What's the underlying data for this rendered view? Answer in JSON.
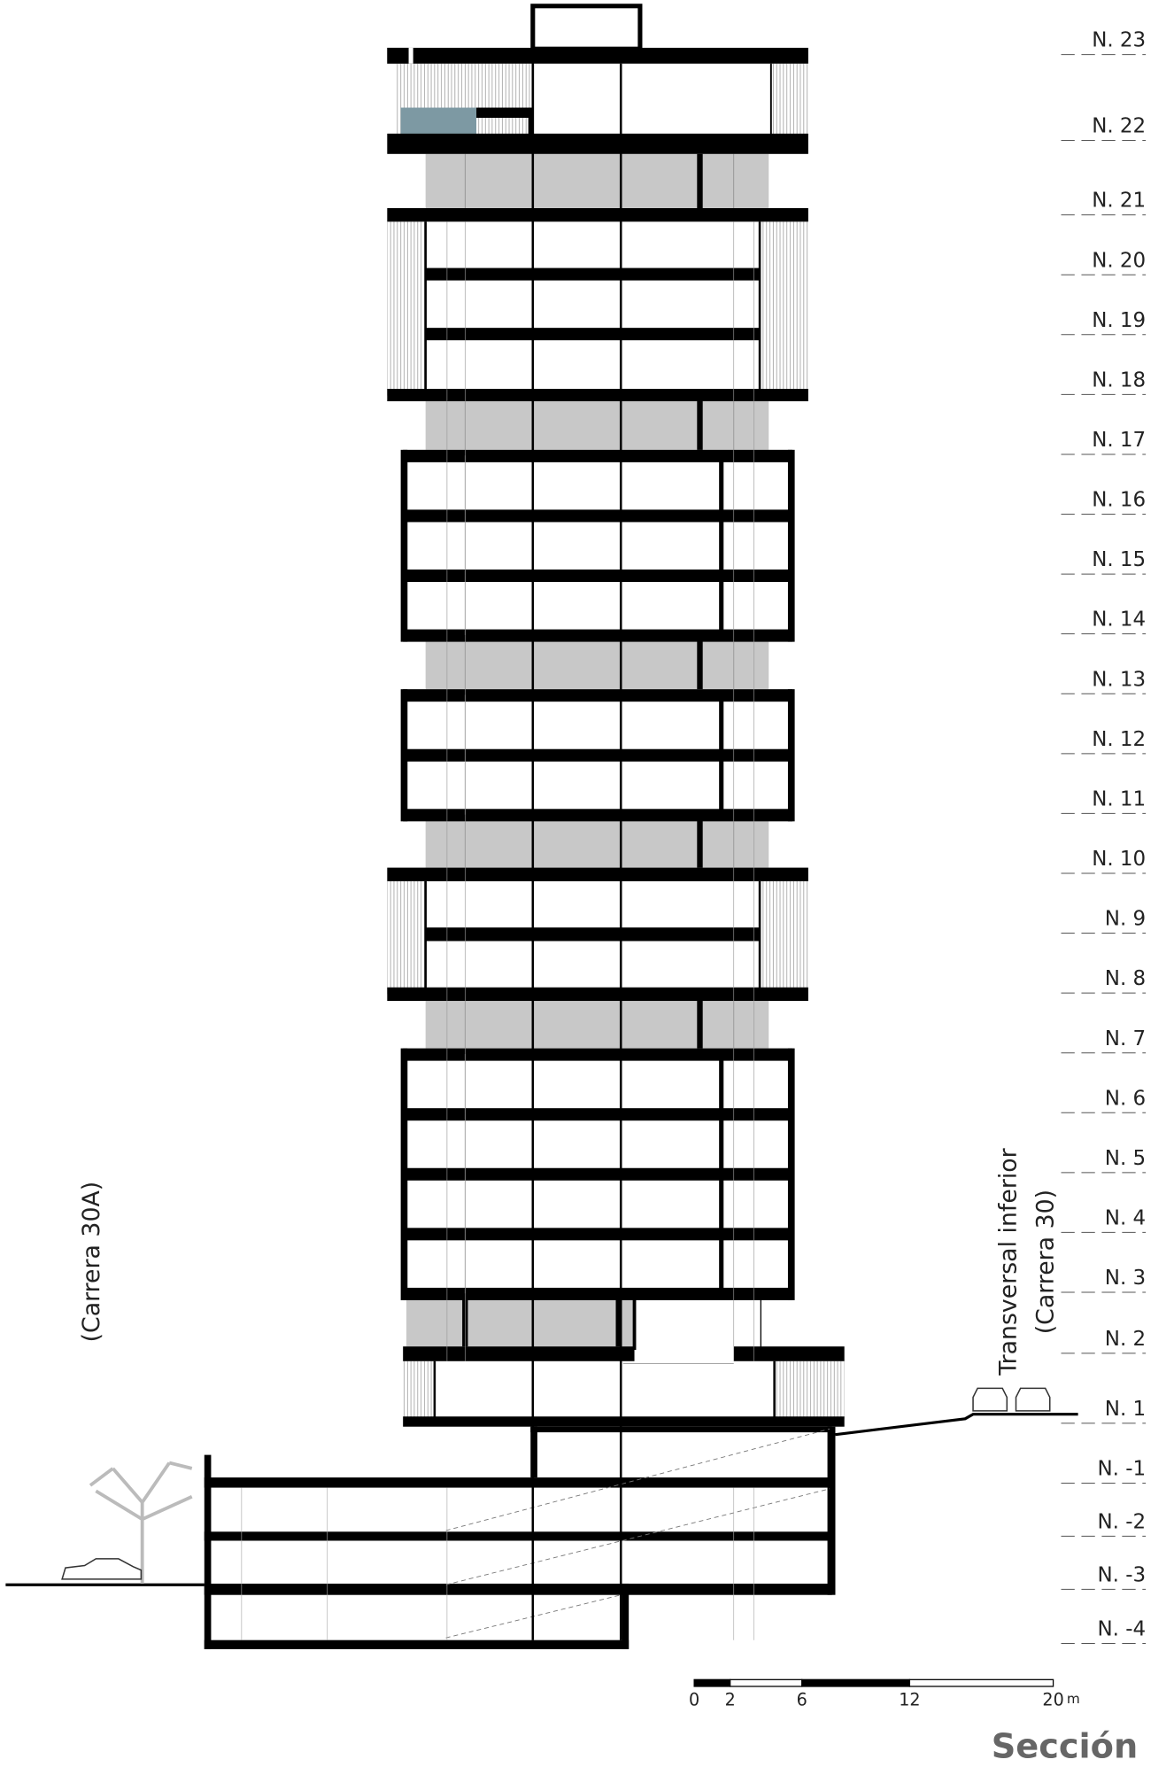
{
  "levels": [
    "N. 23",
    "N. 22",
    "N. 21",
    "N. 20",
    "N. 19",
    "N. 18",
    "N. 17",
    "N. 16",
    "N. 15",
    "N. 14",
    "N. 13",
    "N. 12",
    "N. 11",
    "N. 10",
    "N. 9",
    "N. 8",
    "N. 7",
    "N. 6",
    "N. 5",
    "N. 4",
    "N. 3",
    "N. 2",
    "N. 1",
    "N. -1",
    "N. -2",
    "N. -3",
    "N. -4"
  ],
  "streets": {
    "left": "(Carrera 30A)",
    "right_line1": "Transversal inferior",
    "right_line2": "(Carrera 30)"
  },
  "scale_bar": {
    "ticks": [
      0,
      2,
      6,
      12,
      20
    ],
    "unit": "m"
  },
  "title": "Sección"
}
